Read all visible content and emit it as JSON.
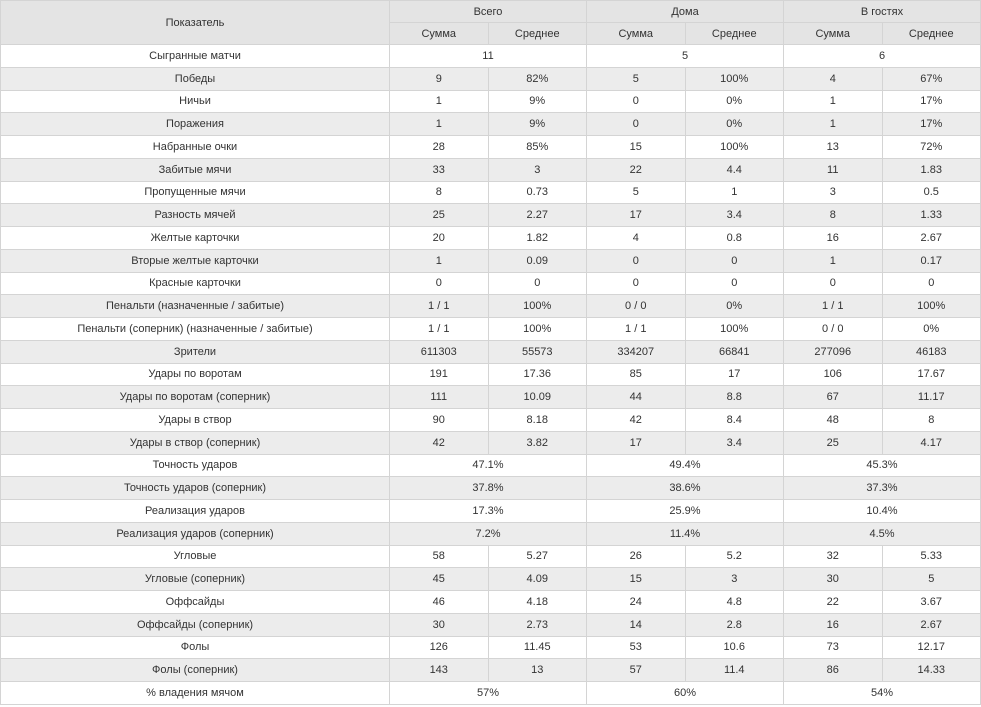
{
  "header": {
    "indicator": "Показатель",
    "groups": [
      "Всего",
      "Дома",
      "В гостях"
    ],
    "sub": [
      "Сумма",
      "Среднее"
    ]
  },
  "rows": [
    {
      "label": "Сыгранные матчи",
      "total": [
        "11"
      ],
      "home": [
        "5"
      ],
      "away": [
        "6"
      ]
    },
    {
      "label": "Победы",
      "total": [
        "9",
        "82%"
      ],
      "home": [
        "5",
        "100%"
      ],
      "away": [
        "4",
        "67%"
      ]
    },
    {
      "label": "Ничьи",
      "total": [
        "1",
        "9%"
      ],
      "home": [
        "0",
        "0%"
      ],
      "away": [
        "1",
        "17%"
      ]
    },
    {
      "label": "Поражения",
      "total": [
        "1",
        "9%"
      ],
      "home": [
        "0",
        "0%"
      ],
      "away": [
        "1",
        "17%"
      ]
    },
    {
      "label": "Набранные очки",
      "total": [
        "28",
        "85%"
      ],
      "home": [
        "15",
        "100%"
      ],
      "away": [
        "13",
        "72%"
      ]
    },
    {
      "label": "Забитые мячи",
      "total": [
        "33",
        "3"
      ],
      "home": [
        "22",
        "4.4"
      ],
      "away": [
        "11",
        "1.83"
      ]
    },
    {
      "label": "Пропущенные мячи",
      "total": [
        "8",
        "0.73"
      ],
      "home": [
        "5",
        "1"
      ],
      "away": [
        "3",
        "0.5"
      ]
    },
    {
      "label": "Разность мячей",
      "total": [
        "25",
        "2.27"
      ],
      "home": [
        "17",
        "3.4"
      ],
      "away": [
        "8",
        "1.33"
      ]
    },
    {
      "label": "Желтые карточки",
      "total": [
        "20",
        "1.82"
      ],
      "home": [
        "4",
        "0.8"
      ],
      "away": [
        "16",
        "2.67"
      ]
    },
    {
      "label": "Вторые желтые карточки",
      "total": [
        "1",
        "0.09"
      ],
      "home": [
        "0",
        "0"
      ],
      "away": [
        "1",
        "0.17"
      ]
    },
    {
      "label": "Красные карточки",
      "total": [
        "0",
        "0"
      ],
      "home": [
        "0",
        "0"
      ],
      "away": [
        "0",
        "0"
      ]
    },
    {
      "label": "Пенальти (назначенные / забитые)",
      "total": [
        "1 / 1",
        "100%"
      ],
      "home": [
        "0 / 0",
        "0%"
      ],
      "away": [
        "1 / 1",
        "100%"
      ]
    },
    {
      "label": "Пенальти (соперник) (назначенные / забитые)",
      "total": [
        "1 / 1",
        "100%"
      ],
      "home": [
        "1 / 1",
        "100%"
      ],
      "away": [
        "0 / 0",
        "0%"
      ]
    },
    {
      "label": "Зрители",
      "total": [
        "611303",
        "55573"
      ],
      "home": [
        "334207",
        "66841"
      ],
      "away": [
        "277096",
        "46183"
      ]
    },
    {
      "label": "Удары по воротам",
      "total": [
        "191",
        "17.36"
      ],
      "home": [
        "85",
        "17"
      ],
      "away": [
        "106",
        "17.67"
      ]
    },
    {
      "label": "Удары по воротам (соперник)",
      "total": [
        "111",
        "10.09"
      ],
      "home": [
        "44",
        "8.8"
      ],
      "away": [
        "67",
        "11.17"
      ]
    },
    {
      "label": "Удары в створ",
      "total": [
        "90",
        "8.18"
      ],
      "home": [
        "42",
        "8.4"
      ],
      "away": [
        "48",
        "8"
      ]
    },
    {
      "label": "Удары в створ (соперник)",
      "total": [
        "42",
        "3.82"
      ],
      "home": [
        "17",
        "3.4"
      ],
      "away": [
        "25",
        "4.17"
      ]
    },
    {
      "label": "Точность ударов",
      "total": [
        "47.1%"
      ],
      "home": [
        "49.4%"
      ],
      "away": [
        "45.3%"
      ]
    },
    {
      "label": "Точность ударов (соперник)",
      "total": [
        "37.8%"
      ],
      "home": [
        "38.6%"
      ],
      "away": [
        "37.3%"
      ]
    },
    {
      "label": "Реализация ударов",
      "total": [
        "17.3%"
      ],
      "home": [
        "25.9%"
      ],
      "away": [
        "10.4%"
      ]
    },
    {
      "label": "Реализация ударов (соперник)",
      "total": [
        "7.2%"
      ],
      "home": [
        "11.4%"
      ],
      "away": [
        "4.5%"
      ]
    },
    {
      "label": "Угловые",
      "total": [
        "58",
        "5.27"
      ],
      "home": [
        "26",
        "5.2"
      ],
      "away": [
        "32",
        "5.33"
      ]
    },
    {
      "label": "Угловые (соперник)",
      "total": [
        "45",
        "4.09"
      ],
      "home": [
        "15",
        "3"
      ],
      "away": [
        "30",
        "5"
      ]
    },
    {
      "label": "Оффсайды",
      "total": [
        "46",
        "4.18"
      ],
      "home": [
        "24",
        "4.8"
      ],
      "away": [
        "22",
        "3.67"
      ]
    },
    {
      "label": "Оффсайды (соперник)",
      "total": [
        "30",
        "2.73"
      ],
      "home": [
        "14",
        "2.8"
      ],
      "away": [
        "16",
        "2.67"
      ]
    },
    {
      "label": "Фолы",
      "total": [
        "126",
        "11.45"
      ],
      "home": [
        "53",
        "10.6"
      ],
      "away": [
        "73",
        "12.17"
      ]
    },
    {
      "label": "Фолы (соперник)",
      "total": [
        "143",
        "13"
      ],
      "home": [
        "57",
        "11.4"
      ],
      "away": [
        "86",
        "14.33"
      ]
    },
    {
      "label": "% владения мячом",
      "total": [
        "57%"
      ],
      "home": [
        "60%"
      ],
      "away": [
        "54%"
      ]
    }
  ]
}
